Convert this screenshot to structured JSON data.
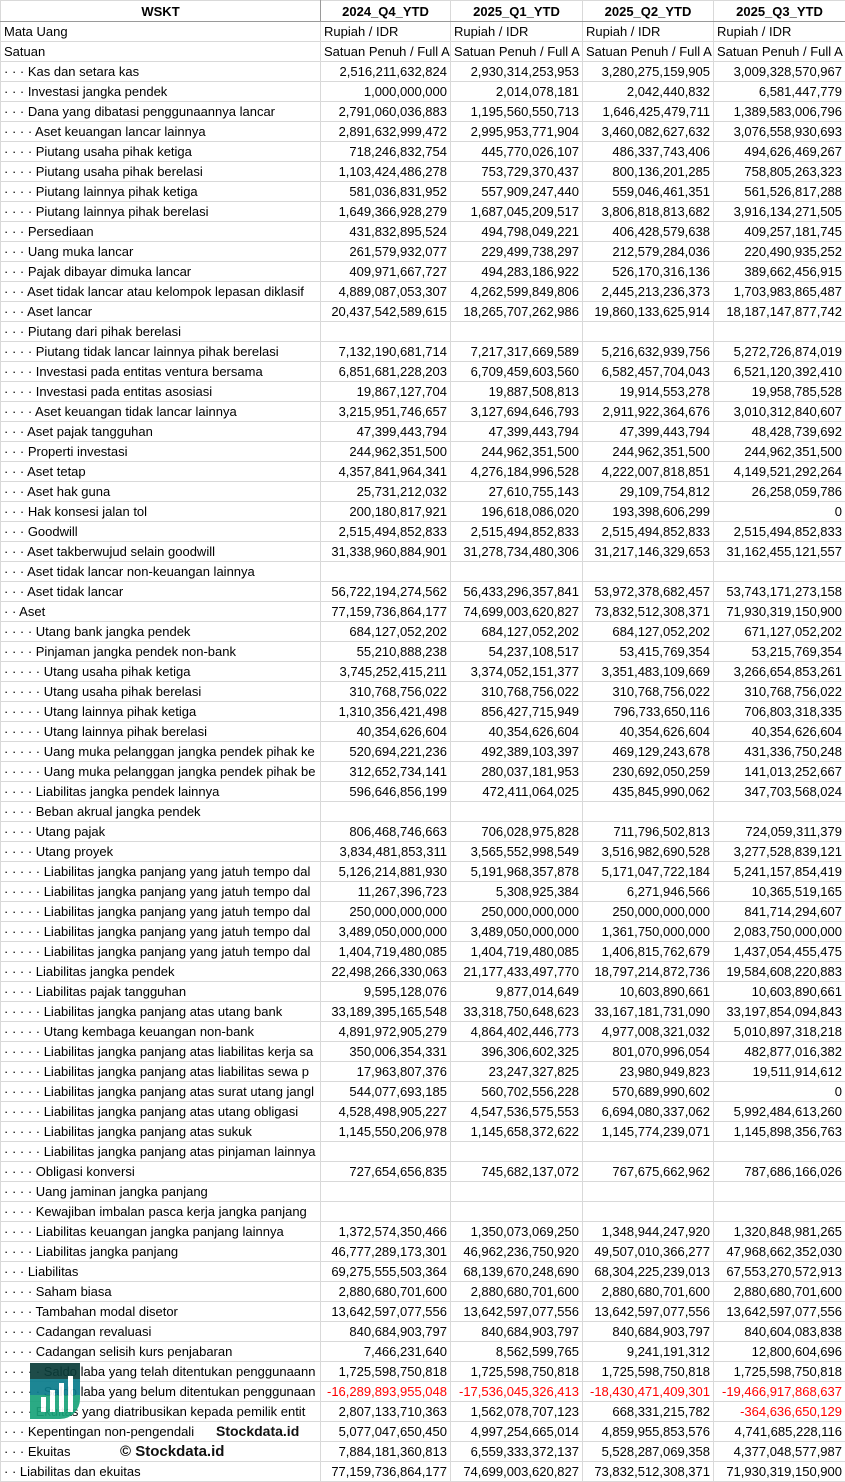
{
  "header": {
    "title": "WSKT",
    "periods": [
      "2024_Q4_YTD",
      "2025_Q1_YTD",
      "2025_Q2_YTD",
      "2025_Q3_YTD"
    ]
  },
  "meta_rows": [
    {
      "label": "Mata Uang",
      "values": [
        "Rupiah / IDR",
        "Rupiah / IDR",
        "Rupiah / IDR",
        "Rupiah / IDR"
      ]
    },
    {
      "label": "Satuan",
      "values": [
        "Satuan Penuh / Full A",
        "Satuan Penuh / Full A",
        "Satuan Penuh / Full A",
        "Satuan Penuh / Full A"
      ]
    }
  ],
  "colors": {
    "negative": "#ff0000",
    "grid": "#d9d9d9"
  },
  "watermark": {
    "text": "© Stockdata.id",
    "logo_text": "Stockdata.id",
    "colors": [
      "#0b3d3a",
      "#0a7c8c",
      "#1aa37a"
    ]
  },
  "rows": [
    {
      "label": "· · · Kas dan setara kas",
      "values": [
        "2,516,211,632,824",
        "2,930,314,253,953",
        "3,280,275,159,905",
        "3,009,328,570,967"
      ]
    },
    {
      "label": "· · · Investasi jangka pendek",
      "values": [
        "1,000,000,000",
        "2,014,078,181",
        "2,042,440,832",
        "6,581,447,779"
      ]
    },
    {
      "label": "· · · Dana yang dibatasi penggunaannya lancar",
      "values": [
        "2,791,060,036,883",
        "1,195,560,550,713",
        "1,646,425,479,711",
        "1,389,583,006,796"
      ]
    },
    {
      "label": "· · · · Aset keuangan lancar lainnya",
      "values": [
        "2,891,632,999,472",
        "2,995,953,771,904",
        "3,460,082,627,632",
        "3,076,558,930,693"
      ]
    },
    {
      "label": "· · · · Piutang usaha pihak ketiga",
      "values": [
        "718,246,832,754",
        "445,770,026,107",
        "486,337,743,406",
        "494,626,469,267"
      ]
    },
    {
      "label": "· · · · Piutang usaha pihak berelasi",
      "values": [
        "1,103,424,486,278",
        "753,729,370,437",
        "800,136,201,285",
        "758,805,263,323"
      ]
    },
    {
      "label": "· · · · Piutang lainnya pihak ketiga",
      "values": [
        "581,036,831,952",
        "557,909,247,440",
        "559,046,461,351",
        "561,526,817,288"
      ]
    },
    {
      "label": "· · · · Piutang lainnya pihak berelasi",
      "values": [
        "1,649,366,928,279",
        "1,687,045,209,517",
        "3,806,818,813,682",
        "3,916,134,271,505"
      ]
    },
    {
      "label": "· · · Persediaan",
      "values": [
        "431,832,895,524",
        "494,798,049,221",
        "406,428,579,638",
        "409,257,181,745"
      ]
    },
    {
      "label": "· · · Uang muka lancar",
      "values": [
        "261,579,932,077",
        "229,499,738,297",
        "212,579,284,036",
        "220,490,935,252"
      ]
    },
    {
      "label": "· · · Pajak dibayar dimuka lancar",
      "values": [
        "409,971,667,727",
        "494,283,186,922",
        "526,170,316,136",
        "389,662,456,915"
      ]
    },
    {
      "label": "· · · Aset tidak lancar atau kelompok lepasan diklasif",
      "values": [
        "4,889,087,053,307",
        "4,262,599,849,806",
        "2,445,213,236,373",
        "1,703,983,865,487"
      ]
    },
    {
      "label": "· · · Aset lancar",
      "values": [
        "20,437,542,589,615",
        "18,265,707,262,986",
        "19,860,133,625,914",
        "18,187,147,877,742"
      ]
    },
    {
      "label": "· · · Piutang dari pihak berelasi",
      "values": [
        "",
        "",
        "",
        ""
      ]
    },
    {
      "label": "· · · · Piutang tidak lancar lainnya pihak berelasi",
      "values": [
        "7,132,190,681,714",
        "7,217,317,669,589",
        "5,216,632,939,756",
        "5,272,726,874,019"
      ]
    },
    {
      "label": "· · · · Investasi pada entitas ventura bersama",
      "values": [
        "6,851,681,228,203",
        "6,709,459,603,560",
        "6,582,457,704,043",
        "6,521,120,392,410"
      ]
    },
    {
      "label": "· · · · Investasi pada entitas asosiasi",
      "values": [
        "19,867,127,704",
        "19,887,508,813",
        "19,914,553,278",
        "19,958,785,528"
      ]
    },
    {
      "label": "· · · · Aset keuangan tidak lancar lainnya",
      "values": [
        "3,215,951,746,657",
        "3,127,694,646,793",
        "2,911,922,364,676",
        "3,010,312,840,607"
      ]
    },
    {
      "label": "· · · Aset pajak tangguhan",
      "values": [
        "47,399,443,794",
        "47,399,443,794",
        "47,399,443,794",
        "48,428,739,692"
      ]
    },
    {
      "label": "· · · Properti investasi",
      "values": [
        "244,962,351,500",
        "244,962,351,500",
        "244,962,351,500",
        "244,962,351,500"
      ]
    },
    {
      "label": "· · · Aset tetap",
      "values": [
        "4,357,841,964,341",
        "4,276,184,996,528",
        "4,222,007,818,851",
        "4,149,521,292,264"
      ]
    },
    {
      "label": "· · · Aset hak guna",
      "values": [
        "25,731,212,032",
        "27,610,755,143",
        "29,109,754,812",
        "26,258,059,786"
      ]
    },
    {
      "label": "· · · Hak konsesi jalan tol",
      "values": [
        "200,180,817,921",
        "196,618,086,020",
        "193,398,606,299",
        "0"
      ]
    },
    {
      "label": "· · · Goodwill",
      "values": [
        "2,515,494,852,833",
        "2,515,494,852,833",
        "2,515,494,852,833",
        "2,515,494,852,833"
      ]
    },
    {
      "label": "· · · Aset takberwujud selain goodwill",
      "values": [
        "31,338,960,884,901",
        "31,278,734,480,306",
        "31,217,146,329,653",
        "31,162,455,121,557"
      ]
    },
    {
      "label": "· · · Aset tidak lancar non-keuangan lainnya",
      "values": [
        "",
        "",
        "",
        ""
      ]
    },
    {
      "label": "· · · Aset tidak lancar",
      "values": [
        "56,722,194,274,562",
        "56,433,296,357,841",
        "53,972,378,682,457",
        "53,743,171,273,158"
      ]
    },
    {
      "label": "· · Aset",
      "values": [
        "77,159,736,864,177",
        "74,699,003,620,827",
        "73,832,512,308,371",
        "71,930,319,150,900"
      ]
    },
    {
      "label": "· · · · Utang bank jangka pendek",
      "values": [
        "684,127,052,202",
        "684,127,052,202",
        "684,127,052,202",
        "671,127,052,202"
      ]
    },
    {
      "label": "· · · · Pinjaman jangka pendek non-bank",
      "values": [
        "55,210,888,238",
        "54,237,108,517",
        "53,415,769,354",
        "53,215,769,354"
      ]
    },
    {
      "label": "· · · · · Utang usaha pihak ketiga",
      "values": [
        "3,745,252,415,211",
        "3,374,052,151,377",
        "3,351,483,109,669",
        "3,266,654,853,261"
      ]
    },
    {
      "label": "· · · · · Utang usaha pihak berelasi",
      "values": [
        "310,768,756,022",
        "310,768,756,022",
        "310,768,756,022",
        "310,768,756,022"
      ]
    },
    {
      "label": "· · · · · Utang lainnya pihak ketiga",
      "values": [
        "1,310,356,421,498",
        "856,427,715,949",
        "796,733,650,116",
        "706,803,318,335"
      ]
    },
    {
      "label": "· · · · · Utang lainnya pihak berelasi",
      "values": [
        "40,354,626,604",
        "40,354,626,604",
        "40,354,626,604",
        "40,354,626,604"
      ]
    },
    {
      "label": "· · · · · Uang muka pelanggan jangka pendek pihak ke",
      "values": [
        "520,694,221,236",
        "492,389,103,397",
        "469,129,243,678",
        "431,336,750,248"
      ]
    },
    {
      "label": "· · · · · Uang muka pelanggan jangka pendek pihak be",
      "values": [
        "312,652,734,141",
        "280,037,181,953",
        "230,692,050,259",
        "141,013,252,667"
      ]
    },
    {
      "label": "· · · · Liabilitas jangka pendek lainnya",
      "values": [
        "596,646,856,199",
        "472,411,064,025",
        "435,845,990,062",
        "347,703,568,024"
      ]
    },
    {
      "label": "· · · · Beban akrual jangka pendek",
      "values": [
        "",
        "",
        "",
        ""
      ]
    },
    {
      "label": "· · · · Utang pajak",
      "values": [
        "806,468,746,663",
        "706,028,975,828",
        "711,796,502,813",
        "724,059,311,379"
      ]
    },
    {
      "label": "· · · · Utang proyek",
      "values": [
        "3,834,481,853,311",
        "3,565,552,998,549",
        "3,516,982,690,528",
        "3,277,528,839,121"
      ]
    },
    {
      "label": "· · · · · Liabilitas jangka panjang yang jatuh tempo dal",
      "values": [
        "5,126,214,881,930",
        "5,191,968,357,878",
        "5,171,047,722,184",
        "5,241,157,854,419"
      ]
    },
    {
      "label": "· · · · · Liabilitas jangka panjang yang jatuh tempo dal",
      "values": [
        "11,267,396,723",
        "5,308,925,384",
        "6,271,946,566",
        "10,365,519,165"
      ]
    },
    {
      "label": "· · · · · Liabilitas jangka panjang yang jatuh tempo dal",
      "values": [
        "250,000,000,000",
        "250,000,000,000",
        "250,000,000,000",
        "841,714,294,607"
      ]
    },
    {
      "label": "· · · · · Liabilitas jangka panjang yang jatuh tempo dal",
      "values": [
        "3,489,050,000,000",
        "3,489,050,000,000",
        "1,361,750,000,000",
        "2,083,750,000,000"
      ]
    },
    {
      "label": "· · · · · Liabilitas jangka panjang yang jatuh tempo dal",
      "values": [
        "1,404,719,480,085",
        "1,404,719,480,085",
        "1,406,815,762,679",
        "1,437,054,455,475"
      ]
    },
    {
      "label": "· · · · Liabilitas jangka pendek",
      "values": [
        "22,498,266,330,063",
        "21,177,433,497,770",
        "18,797,214,872,736",
        "19,584,608,220,883"
      ]
    },
    {
      "label": "· · · · Liabilitas pajak tangguhan",
      "values": [
        "9,595,128,076",
        "9,877,014,649",
        "10,603,890,661",
        "10,603,890,661"
      ]
    },
    {
      "label": "· · · · · Liabilitas jangka panjang atas utang bank",
      "values": [
        "33,189,395,165,548",
        "33,318,750,648,623",
        "33,167,181,731,090",
        "33,197,854,094,843"
      ]
    },
    {
      "label": "· · · · · Utang kembaga keuangan non-bank",
      "values": [
        "4,891,972,905,279",
        "4,864,402,446,773",
        "4,977,008,321,032",
        "5,010,897,318,218"
      ]
    },
    {
      "label": "· · · · · Liabilitas jangka panjang atas liabilitas kerja sa",
      "values": [
        "350,006,354,331",
        "396,306,602,325",
        "801,070,996,054",
        "482,877,016,382"
      ]
    },
    {
      "label": "· · · · · Liabilitas jangka panjang atas liabilitas sewa p",
      "values": [
        "17,963,807,376",
        "23,247,327,825",
        "23,980,949,823",
        "19,511,914,612"
      ]
    },
    {
      "label": "· · · · · Liabilitas jangka panjang atas surat utang jangl",
      "values": [
        "544,077,693,185",
        "560,702,556,228",
        "570,689,990,602",
        "0"
      ]
    },
    {
      "label": "· · · · · Liabilitas jangka panjang atas utang obligasi",
      "values": [
        "4,528,498,905,227",
        "4,547,536,575,553",
        "6,694,080,337,062",
        "5,992,484,613,260"
      ]
    },
    {
      "label": "· · · · · Liabilitas jangka panjang atas sukuk",
      "values": [
        "1,145,550,206,978",
        "1,145,658,372,622",
        "1,145,774,239,071",
        "1,145,898,356,763"
      ]
    },
    {
      "label": "· · · · · Liabilitas jangka panjang atas pinjaman lainnya",
      "values": [
        "",
        "",
        "",
        ""
      ]
    },
    {
      "label": "· · · · Obligasi konversi",
      "values": [
        "727,654,656,835",
        "745,682,137,072",
        "767,675,662,962",
        "787,686,166,026"
      ]
    },
    {
      "label": "· · · · Uang jaminan jangka panjang",
      "values": [
        "",
        "",
        "",
        ""
      ]
    },
    {
      "label": "· · · · Kewajiban imbalan pasca kerja jangka panjang",
      "values": [
        "",
        "",
        "",
        ""
      ]
    },
    {
      "label": "· · · · Liabilitas keuangan jangka panjang lainnya",
      "values": [
        "1,372,574,350,466",
        "1,350,073,069,250",
        "1,348,944,247,920",
        "1,320,848,981,265"
      ]
    },
    {
      "label": "· · · · Liabilitas jangka panjang",
      "values": [
        "46,777,289,173,301",
        "46,962,236,750,920",
        "49,507,010,366,277",
        "47,968,662,352,030"
      ]
    },
    {
      "label": "· · · Liabilitas",
      "values": [
        "69,275,555,503,364",
        "68,139,670,248,690",
        "68,304,225,239,013",
        "67,553,270,572,913"
      ]
    },
    {
      "label": "· · · · Saham biasa",
      "values": [
        "2,880,680,701,600",
        "2,880,680,701,600",
        "2,880,680,701,600",
        "2,880,680,701,600"
      ]
    },
    {
      "label": "· · · · Tambahan modal disetor",
      "values": [
        "13,642,597,077,556",
        "13,642,597,077,556",
        "13,642,597,077,556",
        "13,642,597,077,556"
      ]
    },
    {
      "label": "· · · · Cadangan revaluasi",
      "values": [
        "840,684,903,797",
        "840,684,903,797",
        "840,684,903,797",
        "840,604,083,838"
      ]
    },
    {
      "label": "· · · · Cadangan selisih kurs penjabaran",
      "values": [
        "7,466,231,640",
        "8,562,599,765",
        "9,241,191,312",
        "12,800,604,696"
      ]
    },
    {
      "label": "· · · · · Saldo laba yang telah ditentukan penggunaann",
      "values": [
        "1,725,598,750,818",
        "1,725,598,750,818",
        "1,725,598,750,818",
        "1,725,598,750,818"
      ]
    },
    {
      "label": "· · · · · Saldo laba yang belum ditentukan penggunaan",
      "values": [
        "-16,289,893,955,048",
        "-17,536,045,326,413",
        "-18,430,471,409,301",
        "-19,466,917,868,637"
      ]
    },
    {
      "label": "· · · · Ekuitas yang diatribusikan kepada pemilik entit",
      "values": [
        "2,807,133,710,363",
        "1,562,078,707,123",
        "668,331,215,782",
        "-364,636,650,129"
      ]
    },
    {
      "label": "· · · Kepentingan non-pengendali",
      "values": [
        "5,077,047,650,450",
        "4,997,254,665,014",
        "4,859,955,853,576",
        "4,741,685,228,116"
      ]
    },
    {
      "label": "· · · Ekuitas",
      "values": [
        "7,884,181,360,813",
        "6,559,333,372,137",
        "5,528,287,069,358",
        "4,377,048,577,987"
      ]
    },
    {
      "label": "· · Liabilitas dan ekuitas",
      "values": [
        "77,159,736,864,177",
        "74,699,003,620,827",
        "73,832,512,308,371",
        "71,930,319,150,900"
      ]
    }
  ]
}
